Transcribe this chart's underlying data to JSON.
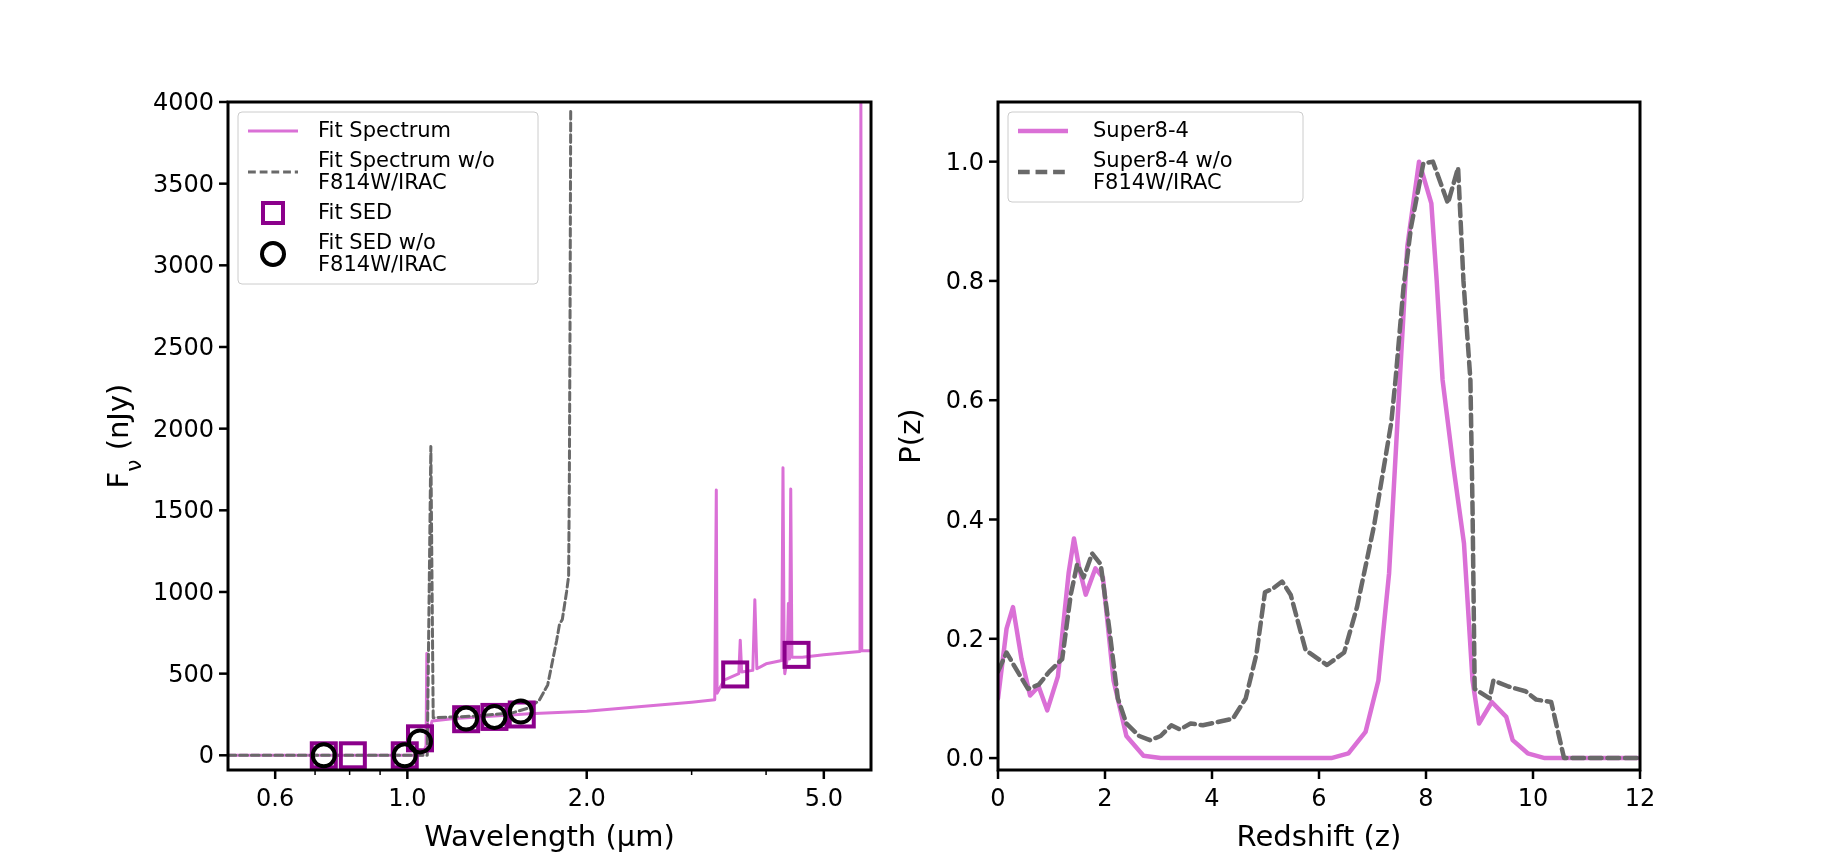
{
  "chart_data": [
    {
      "type": "line",
      "xlabel": "Wavelength (μm)",
      "ylabel": "F$_{ν}$ (nJy)",
      "log": "x",
      "xlim": [
        0.5,
        6
      ],
      "ylim": [
        -90,
        4000
      ],
      "xticks": [
        {
          "value": 0.6,
          "label": "0.6"
        },
        {
          "value": 0.7,
          "label": null
        },
        {
          "value": 0.8,
          "label": null
        },
        {
          "value": 0.9,
          "label": null
        },
        {
          "value": 1,
          "label": "1.0"
        },
        {
          "value": 2,
          "label": "2.0"
        },
        {
          "value": 3,
          "label": null
        },
        {
          "value": 4,
          "label": null
        },
        {
          "value": 5,
          "label": "5.0"
        }
      ],
      "yticks": [
        0,
        500,
        1000,
        1500,
        2000,
        2500,
        3000,
        3500,
        4000
      ],
      "legend": "top left",
      "grid": false,
      "series": [
        {
          "type": "line",
          "name": "Fit Spectrum",
          "color": "#da70d6",
          "line_style": "solid",
          "x": [
            0.5,
            1.06,
            1.075,
            1.078,
            1.081,
            1.1,
            1.2,
            1.4,
            1.6,
            2.0,
            2.5,
            3.0,
            3.28,
            3.3,
            3.31,
            3.4,
            3.6,
            3.62,
            3.64,
            3.8,
            3.83,
            3.86,
            4.0,
            4.25,
            4.27,
            4.29,
            4.3,
            4.34,
            4.36,
            4.38,
            4.4,
            4.42,
            4.6,
            5.0,
            5.5,
            5.75,
            5.77,
            5.79,
            6.0
          ],
          "values": [
            0,
            0,
            60,
            623,
            100,
            210,
            225,
            240,
            255,
            270,
            300,
            325,
            340,
            1625,
            380,
            460,
            500,
            705,
            510,
            520,
            952,
            530,
            560,
            580,
            1760,
            580,
            500,
            590,
            930,
            590,
            1630,
            600,
            600,
            615,
            630,
            635,
            4000,
            640,
            640
          ]
        },
        {
          "type": "line",
          "name": "Fit Spectrum w/o F814W/IRAC",
          "color": "#696969",
          "line_style": "dashed",
          "x": [
            0.5,
            1.08,
            1.095,
            1.105,
            1.3,
            1.5,
            1.6,
            1.665,
            1.72,
            1.78,
            1.8,
            1.82,
            1.85,
            1.865,
            1.87,
            1.875,
            1.88
          ],
          "values": [
            0,
            0,
            1890,
            230,
            240,
            260,
            290,
            337,
            431,
            700,
            801,
            832,
            1000,
            1098,
            1655,
            2622,
            3950
          ]
        },
        {
          "type": "scatter",
          "name": "Fit SED",
          "color": "#8b008b",
          "marker": "square",
          "x": [
            0.724,
            0.81,
            0.99,
            1.05,
            1.255,
            1.4,
            1.556,
            3.55,
            4.5
          ],
          "values": [
            0,
            0,
            0,
            104,
            221,
            235,
            250,
            495,
            615
          ]
        },
        {
          "type": "scatter",
          "name": "Fit SED w/o F814W/IRAC",
          "color": "#000000",
          "marker": "circle",
          "x": [
            0.724,
            0.99,
            1.05,
            1.255,
            1.4,
            1.55
          ],
          "values": [
            0,
            0,
            85,
            225,
            235,
            268
          ]
        }
      ]
    },
    {
      "type": "line",
      "xlabel": "Redshift (z)",
      "ylabel": "P(z)",
      "xlim": [
        0,
        12
      ],
      "ylim": [
        -0.02,
        1.1
      ],
      "xticks": [
        0,
        2,
        4,
        6,
        8,
        10,
        12
      ],
      "yticks": [
        {
          "value": 0,
          "label": "0.0"
        },
        {
          "value": 0.2,
          "label": "0.2"
        },
        {
          "value": 0.4,
          "label": "0.4"
        },
        {
          "value": 0.6,
          "label": "0.6"
        },
        {
          "value": 0.8,
          "label": "0.8"
        },
        {
          "value": 1,
          "label": "1.0"
        }
      ],
      "legend": "top left",
      "grid": false,
      "series": [
        {
          "type": "line",
          "name": "Super8-4",
          "color": "#da70d6",
          "line_style": "solid",
          "x": [
            0,
            0.16,
            0.28,
            0.44,
            0.6,
            0.76,
            0.92,
            1.12,
            1.32,
            1.42,
            1.52,
            1.64,
            1.82,
            1.96,
            2.16,
            2.4,
            2.72,
            3.04,
            6.23,
            6.55,
            6.87,
            7.11,
            7.31,
            7.51,
            7.65,
            7.87,
            8.1,
            8.2,
            8.31,
            8.51,
            8.71,
            8.87,
            8.99,
            9.23,
            9.5,
            9.62,
            9.9,
            10.22,
            12
          ],
          "values": [
            0.1,
            0.217,
            0.253,
            0.166,
            0.105,
            0.12,
            0.08,
            0.137,
            0.31,
            0.368,
            0.318,
            0.274,
            0.318,
            0.303,
            0.13,
            0.037,
            0.004,
            0,
            0,
            0.008,
            0.044,
            0.13,
            0.31,
            0.634,
            0.857,
            1.0,
            0.93,
            0.8,
            0.634,
            0.49,
            0.36,
            0.13,
            0.058,
            0.094,
            0.069,
            0.03,
            0.008,
            0,
            0
          ]
        },
        {
          "type": "line",
          "name": "Super8-4 w/o F814W/IRAC",
          "color": "#696969",
          "line_style": "dashed",
          "x": [
            0,
            0.16,
            0.32,
            0.56,
            0.76,
            0.96,
            1.2,
            1.36,
            1.48,
            1.6,
            1.76,
            1.92,
            2.08,
            2.24,
            2.4,
            2.64,
            2.84,
            3.04,
            3.24,
            3.4,
            3.6,
            3.83,
            4.39,
            4.63,
            4.83,
            4.99,
            5.15,
            5.31,
            5.47,
            5.75,
            6.15,
            6.47,
            6.71,
            7.03,
            7.35,
            7.43,
            7.58,
            7.72,
            7.95,
            8.13,
            8.41,
            8.6,
            8.7,
            8.83,
            8.87,
            8.91,
            9.19,
            9.26,
            9.54,
            9.86,
            10.06,
            10.34,
            10.58,
            12
          ],
          "values": [
            0.145,
            0.177,
            0.152,
            0.116,
            0.123,
            0.145,
            0.166,
            0.274,
            0.325,
            0.303,
            0.343,
            0.325,
            0.217,
            0.1,
            0.058,
            0.037,
            0.03,
            0.037,
            0.055,
            0.048,
            0.058,
            0.055,
            0.066,
            0.1,
            0.174,
            0.278,
            0.285,
            0.296,
            0.274,
            0.181,
            0.156,
            0.177,
            0.253,
            0.39,
            0.562,
            0.634,
            0.79,
            0.89,
            0.997,
            1.0,
            0.93,
            0.99,
            0.8,
            0.634,
            0.418,
            0.116,
            0.1,
            0.13,
            0.12,
            0.112,
            0.098,
            0.094,
            0,
            0
          ]
        }
      ]
    }
  ]
}
